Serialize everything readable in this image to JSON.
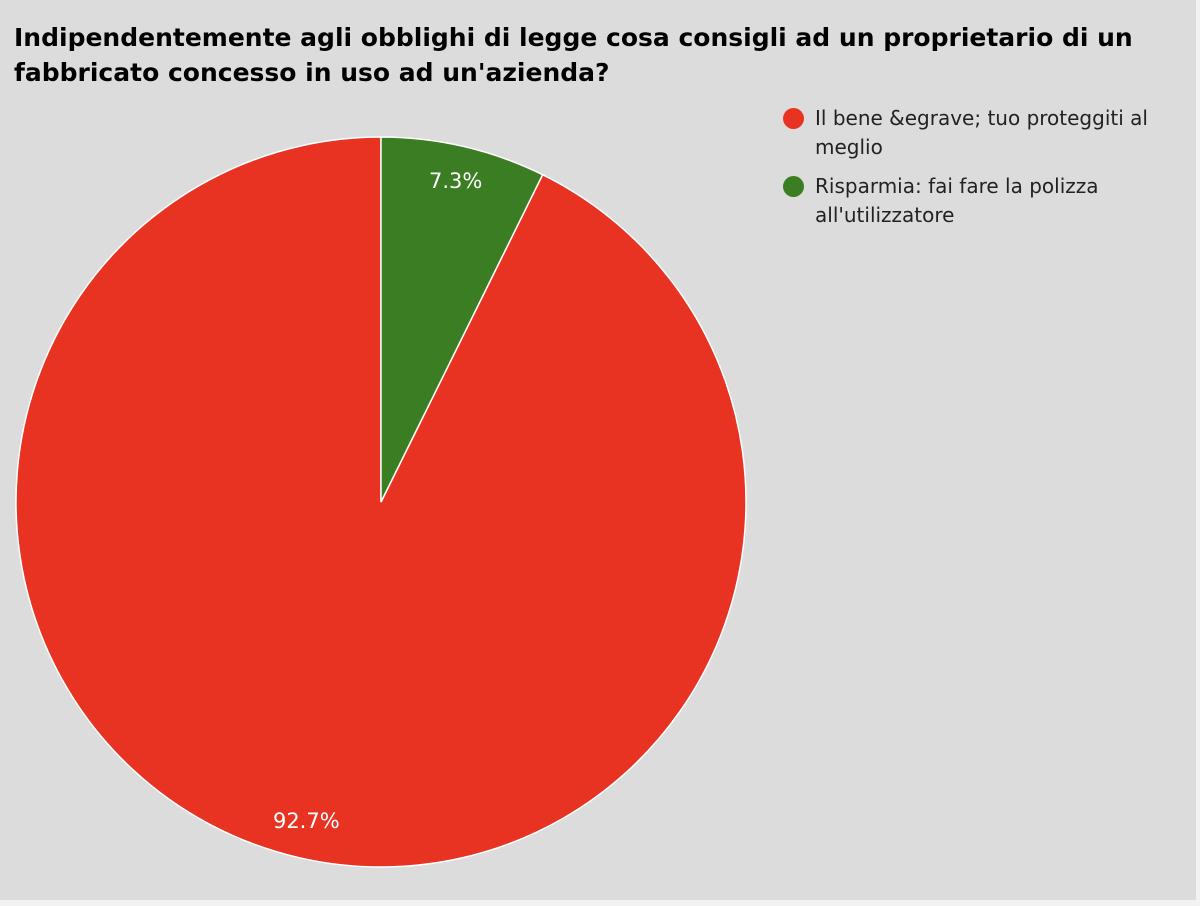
{
  "chart_data": {
    "type": "pie",
    "title": "Indipendentemente agli obblighi di legge cosa consigli ad un proprietario di un fabbricato concesso in uso ad un'azienda?",
    "slices": [
      {
        "label": "Il bene &egrave; tuo proteggiti al meglio",
        "value": 92.7,
        "value_label": "92.7%",
        "color": "#e83323"
      },
      {
        "label": "Risparmia: fai fare la polizza all'utilizzatore",
        "value": 7.3,
        "value_label": "7.3%",
        "color": "#3a7d23"
      }
    ],
    "legend_position": "top-right",
    "start": "top",
    "direction": "counterclockwise"
  }
}
